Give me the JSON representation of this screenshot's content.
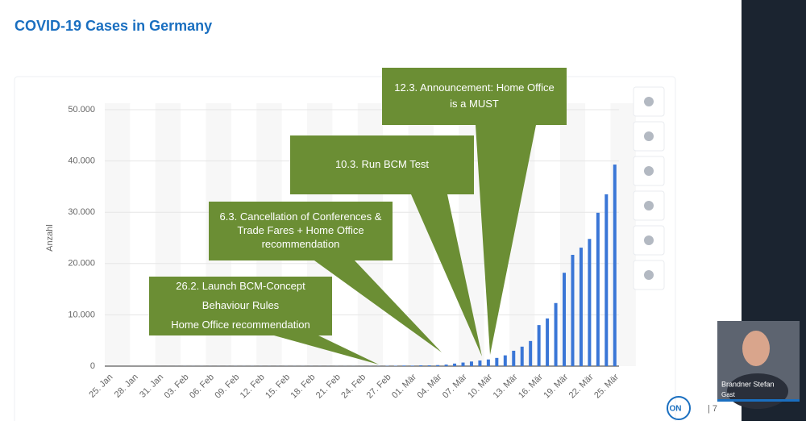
{
  "chart_data": {
    "type": "bar",
    "title": "COVID-19 Cases in Germany",
    "y_label": "Anzahl",
    "categories": [
      "25. Jan",
      null,
      null,
      "28. Jan",
      null,
      null,
      "31. Jan",
      null,
      null,
      "03. Feb",
      null,
      null,
      "06. Feb",
      null,
      null,
      "09. Feb",
      null,
      null,
      "12. Feb",
      null,
      null,
      "15. Feb",
      null,
      null,
      "18. Feb",
      null,
      null,
      "21. Feb",
      null,
      null,
      "24. Feb",
      null,
      null,
      "27. Feb",
      null,
      null,
      "01. Mär",
      null,
      null,
      "04. Mär",
      null,
      null,
      "07. Mär",
      null,
      null,
      "10. Mär",
      null,
      null,
      "13. Mär",
      null,
      null,
      "16. Mär",
      null,
      null,
      "19. Mär",
      null,
      null,
      "22. Mär",
      null,
      null,
      "25. Mär"
    ],
    "values": [
      0,
      0,
      0,
      1,
      4,
      4,
      5,
      8,
      10,
      12,
      12,
      12,
      12,
      13,
      14,
      14,
      14,
      16,
      16,
      16,
      16,
      16,
      16,
      16,
      16,
      16,
      16,
      16,
      16,
      16,
      16,
      18,
      26,
      53,
      66,
      117,
      100,
      150,
      150,
      200,
      300,
      500,
      700,
      900,
      1100,
      1300,
      1600,
      2100,
      3000,
      3800,
      4900,
      8000,
      9300,
      12300,
      18200,
      21700,
      23100,
      24800,
      29900,
      33500,
      39300
    ],
    "color": "#3a76d6",
    "ylim": [
      0,
      50000
    ],
    "yticks": [
      0,
      {
        "value": 10000,
        "label": "10.000"
      },
      {
        "value": 20000,
        "label": "20.000"
      },
      {
        "value": 30000,
        "label": "30.000"
      },
      {
        "value": 40000,
        "label": "40.000"
      },
      {
        "value": 50000,
        "label": "50.000"
      }
    ],
    "grid": true,
    "annotations": [
      {
        "lines": [
          "26.2. Launch BCM-Concept",
          "Behaviour Rules",
          "Home Office recommendation"
        ]
      },
      {
        "lines": [
          "6.3. Cancellation of Conferences &",
          "Trade Fares + Home Office",
          "recommendation"
        ]
      },
      {
        "lines": [
          "10.3. Run BCM Test"
        ]
      },
      {
        "lines": [
          "12.3. Announcement: Home Office",
          "is a MUST"
        ]
      }
    ]
  },
  "footer": {
    "logo": "ON",
    "page": "| 7"
  },
  "participant": {
    "name": "Brandner Stefan",
    "role": "Gast"
  }
}
